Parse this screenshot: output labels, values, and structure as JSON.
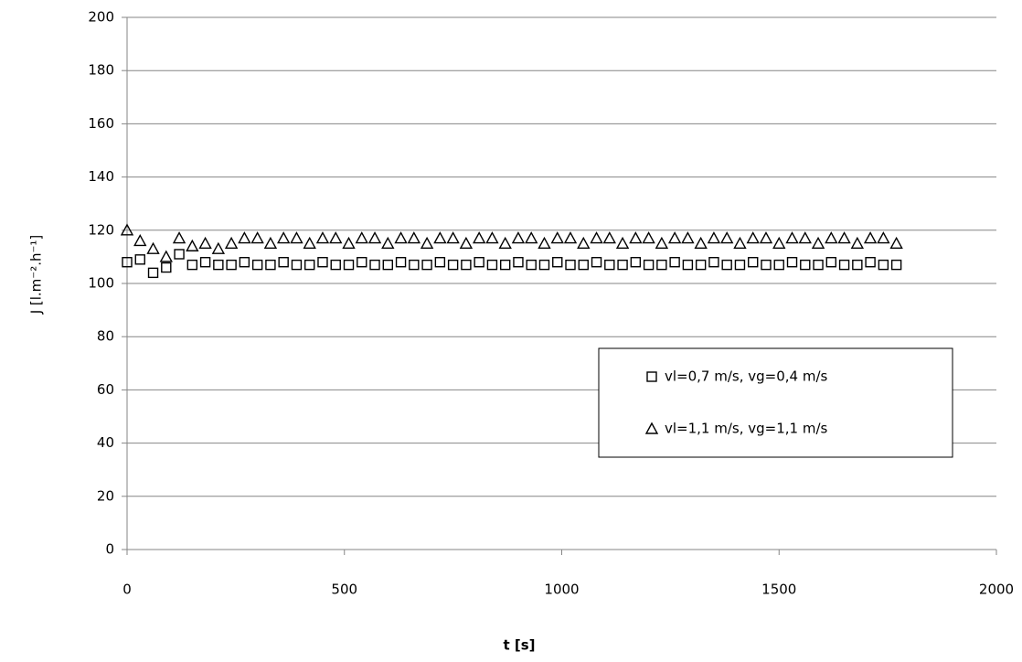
{
  "chart_data": {
    "type": "scatter",
    "x_label": "t [s]",
    "y_label": "J [l.m⁻².h⁻¹]",
    "x": [
      0,
      30,
      60,
      90,
      120,
      150,
      180,
      210,
      240,
      270,
      300,
      330,
      360,
      390,
      420,
      450,
      480,
      510,
      540,
      570,
      600,
      630,
      660,
      690,
      720,
      750,
      780,
      810,
      840,
      870,
      900,
      930,
      960,
      990,
      1020,
      1050,
      1080,
      1110,
      1140,
      1170,
      1200,
      1230,
      1260,
      1290,
      1320,
      1350,
      1380,
      1410,
      1440,
      1470,
      1500,
      1530,
      1560,
      1590,
      1620,
      1650,
      1680,
      1710,
      1740,
      1770
    ],
    "series": [
      {
        "name": "vl=0,7 m/s, vg=0,4 m/s",
        "marker": "square",
        "color": "#000000",
        "values": [
          108,
          109,
          104,
          106,
          111,
          107,
          108,
          107,
          107,
          108,
          107,
          107,
          108,
          107,
          107,
          108,
          107,
          107,
          108,
          107,
          107,
          108,
          107,
          107,
          108,
          107,
          107,
          108,
          107,
          107,
          108,
          107,
          107,
          108,
          107,
          107,
          108,
          107,
          107,
          108,
          107,
          107,
          108,
          107,
          107,
          108,
          107,
          107,
          108,
          107,
          107,
          108,
          107,
          107,
          108,
          107,
          107,
          108,
          107,
          107
        ]
      },
      {
        "name": "vl=1,1 m/s, vg=1,1 m/s",
        "marker": "triangle",
        "color": "#000000",
        "values": [
          120,
          116,
          113,
          110,
          117,
          114,
          115,
          113,
          115,
          117,
          117,
          115,
          117,
          117,
          115,
          117,
          117,
          115,
          117,
          117,
          115,
          117,
          117,
          115,
          117,
          117,
          115,
          117,
          117,
          115,
          117,
          117,
          115,
          117,
          117,
          115,
          117,
          117,
          115,
          117,
          117,
          115,
          117,
          117,
          115,
          117,
          117,
          115,
          117,
          117,
          115,
          117,
          117,
          115,
          117,
          117,
          115,
          117,
          117,
          115
        ]
      }
    ],
    "xlim": [
      0,
      2000
    ],
    "xticks": [
      0,
      500,
      1000,
      1500,
      2000
    ],
    "ylim": [
      0,
      200
    ],
    "yticks": [
      0,
      20,
      40,
      60,
      80,
      100,
      120,
      140,
      160,
      180,
      200
    ],
    "grid": true,
    "legend": "right"
  }
}
